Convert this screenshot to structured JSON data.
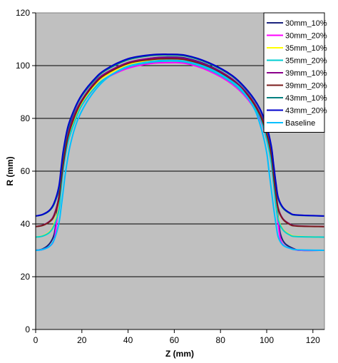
{
  "chart_data": {
    "type": "line",
    "title": "",
    "xlabel": "Z (mm)",
    "ylabel": "R (mm)",
    "xlim": [
      0,
      125
    ],
    "ylim": [
      0,
      120
    ],
    "xticks": [
      0,
      20,
      40,
      60,
      80,
      100,
      120
    ],
    "yticks": [
      0,
      20,
      40,
      60,
      80,
      100,
      120
    ],
    "grid": "horizontal",
    "legend_position": "top-right",
    "plot_background": "#c0c0c0",
    "series": [
      {
        "name": "30mm_10%",
        "color": "#1a237e",
        "x": [
          0,
          3,
          6,
          8,
          9,
          10,
          11,
          12,
          14,
          17,
          20,
          25,
          30,
          40,
          50,
          57,
          65,
          75,
          85,
          92,
          97,
          100,
          102,
          103,
          104,
          105,
          106,
          108,
          112,
          115,
          125
        ],
        "y": [
          30,
          30.5,
          32.5,
          36,
          42,
          50,
          58,
          66,
          75,
          82,
          87,
          93,
          97,
          101,
          102.8,
          103.2,
          102.8,
          100,
          95,
          89,
          82,
          74,
          66,
          58,
          50,
          42,
          36,
          32.5,
          30.5,
          30,
          30
        ]
      },
      {
        "name": "30mm_20%",
        "color": "#ff00ff",
        "x": [
          0,
          3,
          6,
          8,
          9,
          10,
          11,
          12,
          14,
          17,
          20,
          25,
          30,
          40,
          50,
          57,
          65,
          75,
          85,
          92,
          97,
          100,
          102,
          103,
          104,
          105,
          106,
          108,
          112,
          115,
          125
        ],
        "y": [
          30,
          30.3,
          31.5,
          34,
          40,
          48,
          56,
          64,
          73,
          80,
          85,
          91,
          95,
          99,
          100.8,
          101.1,
          100.8,
          98,
          93,
          87,
          80,
          72,
          64,
          56,
          48,
          40,
          34,
          31.5,
          30.3,
          30,
          30
        ]
      },
      {
        "name": "35mm_10%",
        "color": "#ffff00",
        "x": [
          0,
          3,
          6,
          8,
          10,
          11,
          12,
          14,
          17,
          20,
          25,
          30,
          40,
          50,
          57,
          65,
          75,
          85,
          92,
          97,
          100,
          102,
          103,
          104,
          105,
          107,
          110,
          113,
          125
        ],
        "y": [
          35,
          35.5,
          37,
          40,
          46,
          54,
          62,
          72,
          80,
          86,
          92,
          96,
          100.3,
          102,
          102.4,
          102,
          99,
          94,
          88,
          81,
          73,
          64,
          56,
          48,
          42,
          38,
          36,
          35.3,
          35
        ]
      },
      {
        "name": "35mm_20%",
        "color": "#00ced1",
        "x": [
          0,
          3,
          6,
          8,
          10,
          11,
          12,
          14,
          17,
          20,
          25,
          30,
          40,
          50,
          57,
          65,
          75,
          85,
          92,
          97,
          100,
          102,
          103,
          104,
          105,
          107,
          110,
          113,
          125
        ],
        "y": [
          35,
          35.4,
          36.8,
          39.5,
          45,
          53,
          61,
          71,
          79,
          85,
          91,
          95,
          99.5,
          101.3,
          101.7,
          101.3,
          98.5,
          93.5,
          87.5,
          80.5,
          72,
          63,
          55,
          47,
          41.5,
          37.8,
          35.8,
          35.2,
          35
        ]
      },
      {
        "name": "39mm_10%",
        "color": "#8b008b",
        "x": [
          0,
          3,
          6,
          8,
          10,
          11,
          12,
          14,
          17,
          20,
          25,
          30,
          40,
          50,
          57,
          65,
          75,
          85,
          92,
          97,
          100,
          102,
          103,
          104,
          105,
          107,
          110,
          113,
          125
        ],
        "y": [
          39,
          39.5,
          41,
          43.5,
          50,
          57,
          64,
          74,
          82,
          87,
          93,
          97,
          101.2,
          102.8,
          103,
          102.6,
          99.8,
          95,
          89,
          82,
          75,
          67,
          59,
          52,
          46,
          42,
          40,
          39.3,
          39
        ]
      },
      {
        "name": "39mm_20%",
        "color": "#7b1c1c",
        "x": [
          0,
          3,
          6,
          8,
          10,
          11,
          12,
          14,
          17,
          20,
          25,
          30,
          40,
          50,
          57,
          65,
          75,
          85,
          92,
          97,
          100,
          102,
          103,
          104,
          105,
          107,
          110,
          113,
          125
        ],
        "y": [
          39,
          39.4,
          40.8,
          43,
          49,
          56,
          63,
          73,
          81,
          86.5,
          92.5,
          96.5,
          100.8,
          102.3,
          102.6,
          102.2,
          99.4,
          94.5,
          88.5,
          81.5,
          74,
          66,
          58,
          51,
          45.5,
          41.8,
          39.8,
          39.2,
          39
        ]
      },
      {
        "name": "43mm_10%",
        "color": "#008080",
        "x": [
          0,
          3,
          6,
          8,
          10,
          11,
          12,
          14,
          17,
          20,
          25,
          30,
          40,
          50,
          57,
          65,
          75,
          85,
          92,
          97,
          100,
          102,
          103,
          104,
          105,
          107,
          110,
          113,
          125
        ],
        "y": [
          43,
          43.5,
          45,
          47.5,
          53,
          60,
          67,
          76,
          83.5,
          88.5,
          94,
          98,
          102.2,
          103.8,
          104,
          103.6,
          100.8,
          96,
          90,
          83.5,
          76.5,
          69,
          62,
          55,
          49.5,
          46,
          44,
          43.3,
          43
        ]
      },
      {
        "name": "43mm_20%",
        "color": "#0000cd",
        "x": [
          0,
          3,
          6,
          8,
          10,
          11,
          12,
          14,
          17,
          20,
          25,
          30,
          40,
          50,
          57,
          65,
          75,
          85,
          92,
          97,
          100,
          102,
          103,
          104,
          105,
          107,
          110,
          113,
          125
        ],
        "y": [
          43,
          43.6,
          45.2,
          48,
          54,
          61,
          68,
          77,
          84,
          89,
          94.5,
          98.4,
          102.6,
          104.1,
          104.3,
          103.9,
          101.1,
          96.3,
          90.3,
          83.8,
          77,
          69.5,
          62.5,
          55.5,
          50,
          46.3,
          44.2,
          43.4,
          43
        ]
      },
      {
        "name": "Baseline",
        "color": "#00bfff",
        "x": [
          0,
          3,
          6,
          8,
          10,
          11,
          12,
          13,
          15,
          18,
          22,
          27,
          32,
          40,
          50,
          57,
          65,
          75,
          85,
          90,
          95,
          98,
          100,
          101,
          102,
          103,
          104,
          105,
          107,
          110,
          113,
          125
        ],
        "y": [
          30,
          30.3,
          31.5,
          34,
          40,
          46,
          53,
          60,
          70,
          79,
          86,
          92,
          96,
          99.8,
          101.6,
          102,
          101.6,
          99,
          94,
          90,
          83,
          75,
          67,
          60,
          53,
          46,
          40,
          35,
          32,
          30.8,
          30.2,
          30
        ]
      }
    ]
  }
}
